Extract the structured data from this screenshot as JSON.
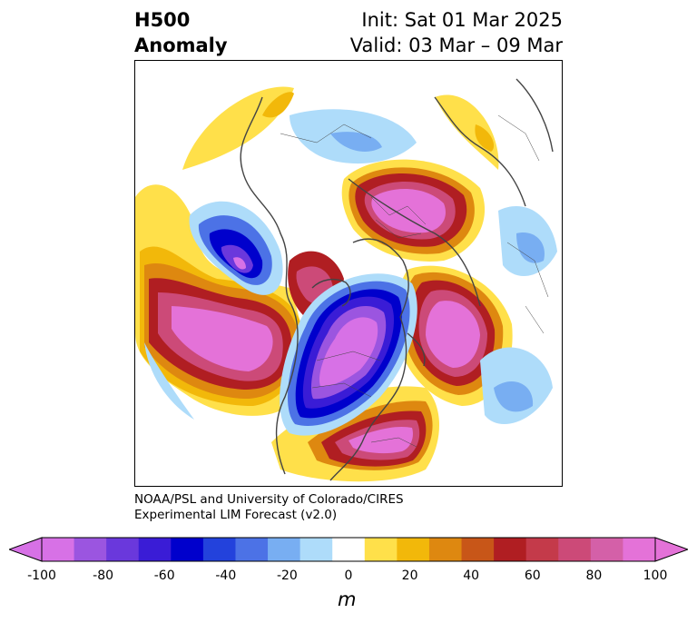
{
  "header": {
    "title_line1": "H500",
    "title_line2": "Anomaly",
    "init_text": "Init: Sat 01 Mar 2025",
    "valid_text": "Valid: 03 Mar – 09 Mar"
  },
  "credit": {
    "line1": "NOAA/PSL and University of Colorado/CIRES",
    "line2": "Experimental LIM Forecast (v2.0)"
  },
  "colorbar": {
    "unit": "m",
    "tick_labels": [
      "-100",
      "-80",
      "-60",
      "-40",
      "-20",
      "0",
      "20",
      "40",
      "60",
      "80",
      "100"
    ],
    "levels": [
      -100,
      -90,
      -80,
      -70,
      -60,
      -50,
      -40,
      -30,
      -20,
      -10,
      10,
      20,
      30,
      40,
      50,
      60,
      70,
      80,
      90,
      100
    ],
    "colors": [
      "#d771e6",
      "#9b55e0",
      "#6a38dc",
      "#3a1cd6",
      "#0000cc",
      "#2342dc",
      "#4c72e6",
      "#78aef2",
      "#aedcfa",
      "#ffffff",
      "#ffe04a",
      "#f2b80a",
      "#de8810",
      "#c85618",
      "#b01e22",
      "#c43a4a",
      "#cc4a78",
      "#d460a8",
      "#e472d8"
    ],
    "extend_low_color": "#d771e6",
    "extend_high_color": "#e472d8"
  },
  "map": {
    "projection": "north-polar-stereographic",
    "coastline_color": "#444444"
  }
}
